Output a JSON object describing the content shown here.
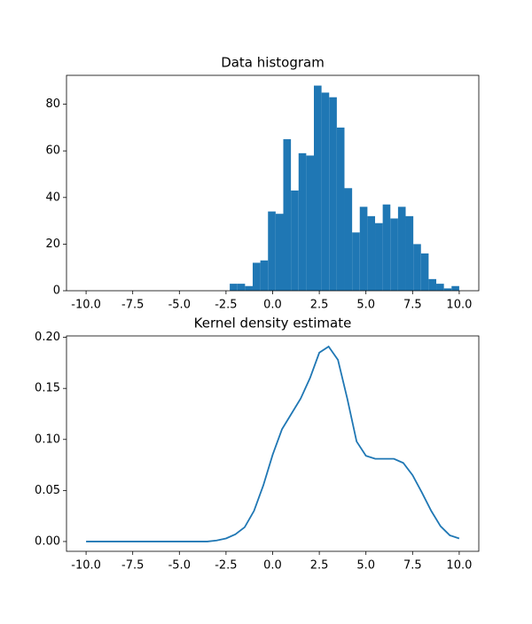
{
  "chart_data": [
    {
      "type": "histogram",
      "title": "Data histogram",
      "color": "#1f77b4",
      "bins": [
        -2.3,
        -1.89,
        -1.48,
        -1.07,
        -0.66,
        -0.25,
        0.16,
        0.57,
        0.98,
        1.39,
        1.8,
        2.21,
        2.62,
        3.03,
        3.44,
        3.85,
        4.26,
        4.67,
        5.08,
        5.49,
        5.9,
        6.31,
        6.72,
        7.13,
        7.54,
        7.95,
        8.36,
        8.77,
        9.18,
        9.59,
        10
      ],
      "values": [
        3,
        3,
        2,
        12,
        13,
        34,
        33,
        65,
        43,
        59,
        58,
        88,
        85,
        83,
        70,
        44,
        25,
        36,
        32,
        29,
        37,
        31,
        36,
        32,
        20,
        16,
        5,
        3,
        1,
        2
      ],
      "xlim": [
        -11.05,
        11.05
      ],
      "ylim": [
        0,
        92.4
      ],
      "xticks": [
        {
          "value": -10,
          "label": "-10.0"
        },
        {
          "value": -7.5,
          "label": "-7.5"
        },
        {
          "value": -5,
          "label": "-5.0"
        },
        {
          "value": -2.5,
          "label": "-2.5"
        },
        {
          "value": 0,
          "label": "0.0"
        },
        {
          "value": 2.5,
          "label": "2.5"
        },
        {
          "value": 5,
          "label": "5.0"
        },
        {
          "value": 7.5,
          "label": "7.5"
        },
        {
          "value": 10,
          "label": "10.0"
        }
      ],
      "yticks": [
        0,
        20,
        40,
        60,
        80
      ]
    },
    {
      "type": "line",
      "title": "Kernel density estimate",
      "color": "#1f77b4",
      "x": [
        -10,
        -9.5,
        -9,
        -8.5,
        -8,
        -7.5,
        -7,
        -6.5,
        -6,
        -5.5,
        -5,
        -4.5,
        -4,
        -3.5,
        -3,
        -2.5,
        -2,
        -1.5,
        -1,
        -0.5,
        0,
        0.5,
        1,
        1.5,
        2,
        2.5,
        3,
        3.5,
        4,
        4.5,
        5,
        5.5,
        6,
        6.5,
        7,
        7.5,
        8,
        8.5,
        9,
        9.5,
        10
      ],
      "values": [
        0,
        0,
        0,
        0,
        0,
        0,
        0,
        0,
        0,
        0,
        0,
        0,
        0,
        0,
        0.001,
        0.003,
        0.007,
        0.014,
        0.03,
        0.055,
        0.085,
        0.11,
        0.125,
        0.14,
        0.16,
        0.185,
        0.191,
        0.178,
        0.14,
        0.098,
        0.084,
        0.081,
        0.081,
        0.081,
        0.077,
        0.065,
        0.048,
        0.03,
        0.015,
        0.006,
        0.003
      ],
      "xlim": [
        -11.05,
        11.05
      ],
      "ylim": [
        -0.0096,
        0.2014
      ],
      "xticks": [
        {
          "value": -10,
          "label": "-10.0"
        },
        {
          "value": -7.5,
          "label": "-7.5"
        },
        {
          "value": -5,
          "label": "-5.0"
        },
        {
          "value": -2.5,
          "label": "-2.5"
        },
        {
          "value": 0,
          "label": "0.0"
        },
        {
          "value": 2.5,
          "label": "2.5"
        },
        {
          "value": 5,
          "label": "5.0"
        },
        {
          "value": 7.5,
          "label": "7.5"
        },
        {
          "value": 10,
          "label": "10.0"
        }
      ],
      "yticks": [
        {
          "value": 0,
          "label": "0.00"
        },
        {
          "value": 0.05,
          "label": "0.05"
        },
        {
          "value": 0.1,
          "label": "0.10"
        },
        {
          "value": 0.15,
          "label": "0.15"
        },
        {
          "value": 0.2,
          "label": "0.20"
        }
      ]
    }
  ]
}
